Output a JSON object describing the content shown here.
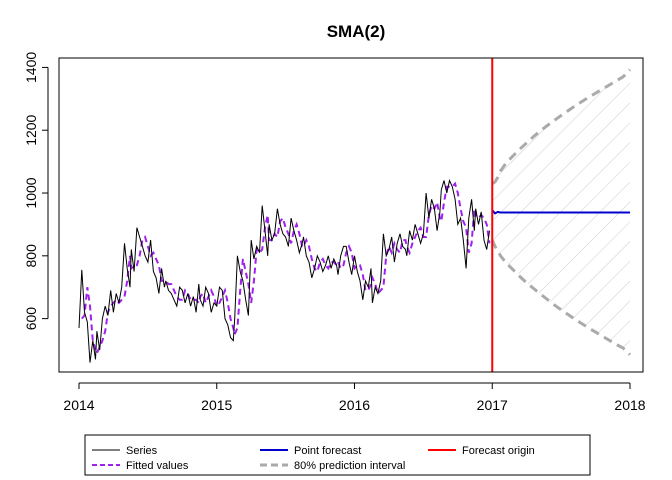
{
  "chart_data": {
    "type": "line",
    "title": "SMA(2)",
    "xlabel": "",
    "ylabel": "",
    "xlim": [
      2014,
      2018
    ],
    "ylim": [
      430,
      1430
    ],
    "x_ticks": [
      2014,
      2015,
      2016,
      2017,
      2018
    ],
    "x_tick_labels": [
      "2014",
      "2015",
      "2016",
      "2017",
      "2018"
    ],
    "y_ticks": [
      600,
      800,
      1000,
      1200,
      1400
    ],
    "y_tick_labels": [
      "600",
      "800",
      "1000",
      "1200",
      "1400"
    ],
    "grid": false,
    "legend_position": "bottom",
    "colors": {
      "series": "#000000",
      "fitted": "#a020f0",
      "point_forecast": "#0000cd",
      "interval": "#aaaaaa",
      "hatch": "#cccccc",
      "origin": "#ff0000"
    },
    "series": [
      {
        "name": "Series",
        "x": [
          2014.0,
          2014.02,
          2014.04,
          2014.06,
          2014.08,
          2014.1,
          2014.12,
          2014.13,
          2014.15,
          2014.17,
          2014.19,
          2014.21,
          2014.23,
          2014.25,
          2014.27,
          2014.29,
          2014.31,
          2014.33,
          2014.35,
          2014.37,
          2014.38,
          2014.4,
          2014.42,
          2014.44,
          2014.46,
          2014.48,
          2014.5,
          2014.52,
          2014.54,
          2014.56,
          2014.58,
          2014.6,
          2014.62,
          2014.63,
          2014.65,
          2014.67,
          2014.69,
          2014.71,
          2014.73,
          2014.75,
          2014.77,
          2014.79,
          2014.81,
          2014.83,
          2014.85,
          2014.87,
          2014.88,
          2014.9,
          2014.92,
          2014.94,
          2014.96,
          2014.98,
          2015.0,
          2015.02,
          2015.04,
          2015.06,
          2015.08,
          2015.1,
          2015.12,
          2015.13,
          2015.15,
          2015.17,
          2015.19,
          2015.21,
          2015.23,
          2015.25,
          2015.27,
          2015.29,
          2015.31,
          2015.33,
          2015.35,
          2015.37,
          2015.38,
          2015.4,
          2015.42,
          2015.44,
          2015.46,
          2015.48,
          2015.5,
          2015.52,
          2015.54,
          2015.56,
          2015.58,
          2015.6,
          2015.62,
          2015.63,
          2015.65,
          2015.67,
          2015.69,
          2015.71,
          2015.73,
          2015.75,
          2015.77,
          2015.79,
          2015.81,
          2015.83,
          2015.85,
          2015.87,
          2015.88,
          2015.9,
          2015.92,
          2015.94,
          2015.96,
          2015.98,
          2016.0,
          2016.02,
          2016.04,
          2016.06,
          2016.08,
          2016.1,
          2016.12,
          2016.13,
          2016.15,
          2016.17,
          2016.19,
          2016.21,
          2016.23,
          2016.25,
          2016.27,
          2016.29,
          2016.31,
          2016.33,
          2016.35,
          2016.37,
          2016.38,
          2016.4,
          2016.42,
          2016.44,
          2016.46,
          2016.48,
          2016.5,
          2016.52,
          2016.54,
          2016.56,
          2016.58,
          2016.6,
          2016.62,
          2016.63,
          2016.65,
          2016.67,
          2016.69,
          2016.71,
          2016.73,
          2016.75,
          2016.77,
          2016.79,
          2016.81,
          2016.83,
          2016.85,
          2016.87,
          2016.88,
          2016.9,
          2016.92,
          2016.94,
          2016.96,
          2016.98
        ],
        "y": [
          570,
          755,
          620,
          590,
          460,
          530,
          470,
          560,
          500,
          600,
          640,
          610,
          690,
          620,
          680,
          650,
          700,
          840,
          760,
          700,
          820,
          750,
          890,
          860,
          830,
          800,
          780,
          850,
          750,
          730,
          680,
          760,
          700,
          720,
          690,
          680,
          660,
          640,
          700,
          690,
          650,
          680,
          640,
          670,
          620,
          710,
          660,
          640,
          700,
          680,
          620,
          650,
          640,
          700,
          690,
          600,
          580,
          540,
          530,
          600,
          800,
          750,
          720,
          660,
          610,
          850,
          790,
          830,
          810,
          960,
          880,
          800,
          900,
          850,
          870,
          950,
          900,
          870,
          860,
          830,
          920,
          880,
          850,
          810,
          840,
          860,
          800,
          780,
          730,
          760,
          800,
          780,
          750,
          770,
          800,
          760,
          790,
          770,
          740,
          800,
          830,
          830,
          780,
          740,
          800,
          750,
          720,
          660,
          720,
          700,
          760,
          650,
          700,
          680,
          720,
          870,
          800,
          820,
          860,
          780,
          840,
          870,
          830,
          820,
          800,
          880,
          850,
          900,
          870,
          840,
          870,
          1000,
          920,
          980,
          950,
          880,
          940,
          1010,
          1040,
          1000,
          1040,
          1020,
          980,
          900,
          920,
          850,
          760,
          920,
          980,
          880,
          950,
          900,
          940,
          850,
          820,
          880
        ]
      },
      {
        "name": "Fitted values",
        "x": [
          2014.02,
          2014.04,
          2014.06,
          2014.08,
          2014.1,
          2014.12,
          2014.13,
          2014.15,
          2014.17,
          2014.19,
          2014.21,
          2014.23,
          2014.25,
          2014.27,
          2014.29,
          2014.31,
          2014.33,
          2014.35,
          2014.37,
          2014.38,
          2014.4,
          2014.42,
          2014.44,
          2014.46,
          2014.48,
          2014.5,
          2014.52,
          2014.54,
          2014.56,
          2014.58,
          2014.6,
          2014.62,
          2014.63,
          2014.65,
          2014.67,
          2014.69,
          2014.71,
          2014.73,
          2014.75,
          2014.77,
          2014.79,
          2014.81,
          2014.83,
          2014.85,
          2014.87,
          2014.88,
          2014.9,
          2014.92,
          2014.94,
          2014.96,
          2014.98,
          2015.0,
          2015.02,
          2015.04,
          2015.06,
          2015.08,
          2015.1,
          2015.12,
          2015.13,
          2015.15,
          2015.17,
          2015.19,
          2015.21,
          2015.23,
          2015.25,
          2015.27,
          2015.29,
          2015.31,
          2015.33,
          2015.35,
          2015.37,
          2015.38,
          2015.4,
          2015.42,
          2015.44,
          2015.46,
          2015.48,
          2015.5,
          2015.52,
          2015.54,
          2015.56,
          2015.58,
          2015.6,
          2015.62,
          2015.63,
          2015.65,
          2015.67,
          2015.69,
          2015.71,
          2015.73,
          2015.75,
          2015.77,
          2015.79,
          2015.81,
          2015.83,
          2015.85,
          2015.87,
          2015.88,
          2015.9,
          2015.92,
          2015.94,
          2015.96,
          2015.98,
          2016.0,
          2016.02,
          2016.04,
          2016.06,
          2016.08,
          2016.1,
          2016.12,
          2016.13,
          2016.15,
          2016.17,
          2016.19,
          2016.21,
          2016.23,
          2016.25,
          2016.27,
          2016.29,
          2016.31,
          2016.33,
          2016.35,
          2016.37,
          2016.38,
          2016.4,
          2016.42,
          2016.44,
          2016.46,
          2016.48,
          2016.5,
          2016.52,
          2016.54,
          2016.56,
          2016.58,
          2016.6,
          2016.62,
          2016.63,
          2016.65,
          2016.67,
          2016.69,
          2016.71,
          2016.73,
          2016.75,
          2016.77,
          2016.79,
          2016.81,
          2016.83,
          2016.85,
          2016.87,
          2016.88,
          2016.9,
          2016.92,
          2016.94,
          2016.96,
          2016.98
        ],
        "y": [
          600,
          610,
          700,
          640,
          530,
          500,
          490,
          510,
          530,
          560,
          620,
          640,
          650,
          660,
          650,
          660,
          670,
          720,
          800,
          760,
          770,
          770,
          800,
          850,
          860,
          830,
          800,
          810,
          790,
          770,
          720,
          720,
          720,
          710,
          710,
          690,
          670,
          660,
          660,
          690,
          680,
          660,
          660,
          660,
          650,
          670,
          680,
          650,
          670,
          690,
          670,
          640,
          650,
          670,
          690,
          650,
          600,
          570,
          550,
          570,
          690,
          790,
          750,
          710,
          650,
          720,
          820,
          810,
          820,
          890,
          930,
          850,
          850,
          870,
          860,
          910,
          920,
          890,
          870,
          840,
          880,
          900,
          870,
          830,
          830,
          850,
          830,
          790,
          760,
          750,
          780,
          790,
          770,
          760,
          780,
          780,
          770,
          780,
          760,
          770,
          810,
          830,
          810,
          760,
          770,
          770,
          740,
          690,
          690,
          710,
          730,
          710,
          680,
          690,
          700,
          800,
          830,
          810,
          840,
          820,
          810,
          850,
          850,
          830,
          810,
          840,
          860,
          880,
          890,
          860,
          860,
          930,
          960,
          950,
          970,
          920,
          910,
          970,
          1020,
          1020,
          1020,
          1030,
          1000,
          950,
          910,
          890,
          810,
          840,
          950,
          930,
          920,
          930,
          920,
          900,
          840
        ]
      }
    ],
    "forecast": {
      "origin": 2017.0,
      "point_forecast": {
        "name": "Point forecast",
        "x": [
          2017.0,
          2017.02,
          2017.04,
          2017.06,
          2018.0
        ],
        "y": [
          945,
          935,
          940,
          938,
          938
        ]
      },
      "interval": {
        "name": "80% prediction interval",
        "x": [
          2017.0,
          2017.02,
          2017.04,
          2017.06,
          2017.1,
          2017.15,
          2017.2,
          2017.25,
          2017.3,
          2017.35,
          2017.4,
          2017.45,
          2017.5,
          2017.55,
          2017.6,
          2017.65,
          2017.7,
          2017.75,
          2017.8,
          2017.85,
          2017.9,
          2017.95,
          2018.0
        ],
        "upper": [
          1030,
          1035,
          1050,
          1070,
          1095,
          1118,
          1140,
          1160,
          1180,
          1198,
          1215,
          1231,
          1247,
          1262,
          1277,
          1291,
          1305,
          1318,
          1331,
          1344,
          1357,
          1370,
          1393
        ],
        "lower": [
          850,
          830,
          815,
          800,
          778,
          756,
          734,
          714,
          696,
          678,
          661,
          644,
          628,
          613,
          598,
          584,
          570,
          557,
          544,
          531,
          518,
          506,
          485
        ]
      }
    },
    "legend": {
      "items": [
        {
          "label": "Series",
          "style": "line",
          "color": "#000000"
        },
        {
          "label": "Fitted values",
          "style": "dashed",
          "color": "#a020f0"
        },
        {
          "label": "Point forecast",
          "style": "line",
          "color": "#0000cd"
        },
        {
          "label": "80% prediction interval",
          "style": "dashed",
          "color": "#aaaaaa"
        },
        {
          "label": "Forecast origin",
          "style": "line",
          "color": "#ff0000"
        }
      ]
    }
  }
}
